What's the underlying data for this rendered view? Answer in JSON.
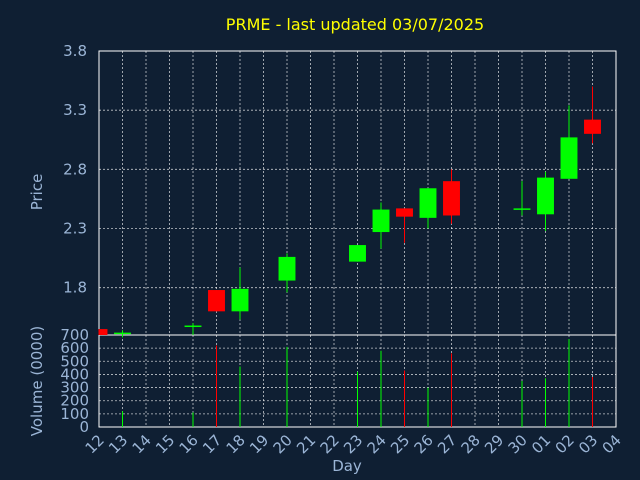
{
  "chart_data": {
    "type": "candlestick",
    "title": "PRME - last updated 03/07/2025",
    "price_panel": {
      "ylabel": "Price",
      "ylim": [
        1.4,
        3.8
      ],
      "yticks": [
        "1.8",
        "2.3",
        "2.8",
        "3.3",
        "3.8"
      ]
    },
    "volume_panel": {
      "ylabel": "Volume (0000)",
      "ylim": [
        0,
        700
      ],
      "yticks": [
        "0",
        "100",
        "200",
        "300",
        "400",
        "500",
        "600",
        "700"
      ]
    },
    "xlabel": "Day",
    "xticks": [
      "12",
      "13",
      "14",
      "15",
      "16",
      "17",
      "18",
      "19",
      "20",
      "21",
      "22",
      "23",
      "24",
      "25",
      "26",
      "27",
      "28",
      "29",
      "30",
      "01",
      "02",
      "03",
      "04"
    ],
    "up_color": "#00ff00",
    "down_color": "#ff0000",
    "candles": [
      {
        "day": "12",
        "open": 1.45,
        "close": 1.4,
        "high": 1.45,
        "low": 1.4,
        "volume": 0
      },
      {
        "day": "13",
        "open": 1.41,
        "close": 1.42,
        "high": 1.44,
        "low": 1.38,
        "volume": 120
      },
      {
        "day": "16",
        "open": 1.47,
        "close": 1.48,
        "high": 1.5,
        "low": 1.4,
        "volume": 110
      },
      {
        "day": "17",
        "open": 1.78,
        "close": 1.6,
        "high": 1.78,
        "low": 1.6,
        "volume": 620
      },
      {
        "day": "18",
        "open": 1.6,
        "close": 1.79,
        "high": 1.97,
        "low": 1.53,
        "volume": 460
      },
      {
        "day": "20",
        "open": 1.86,
        "close": 2.06,
        "high": 2.09,
        "low": 1.76,
        "volume": 610
      },
      {
        "day": "23",
        "open": 2.02,
        "close": 2.16,
        "high": 2.16,
        "low": 2.02,
        "volume": 420
      },
      {
        "day": "24",
        "open": 2.27,
        "close": 2.46,
        "high": 2.52,
        "low": 2.13,
        "volume": 580
      },
      {
        "day": "25",
        "open": 2.47,
        "close": 2.4,
        "high": 2.47,
        "low": 2.18,
        "volume": 430
      },
      {
        "day": "26",
        "open": 2.39,
        "close": 2.64,
        "high": 2.64,
        "low": 2.3,
        "volume": 300
      },
      {
        "day": "27",
        "open": 2.7,
        "close": 2.41,
        "high": 2.8,
        "low": 2.34,
        "volume": 560
      },
      {
        "day": "30",
        "open": 2.46,
        "close": 2.47,
        "high": 2.7,
        "low": 2.41,
        "volume": 350
      },
      {
        "day": "01",
        "open": 2.42,
        "close": 2.73,
        "high": 2.78,
        "low": 2.28,
        "volume": 370
      },
      {
        "day": "02",
        "open": 2.72,
        "close": 3.07,
        "high": 3.34,
        "low": 2.72,
        "volume": 670
      },
      {
        "day": "03",
        "open": 3.22,
        "close": 3.1,
        "high": 3.5,
        "low": 3.02,
        "volume": 380
      }
    ]
  }
}
